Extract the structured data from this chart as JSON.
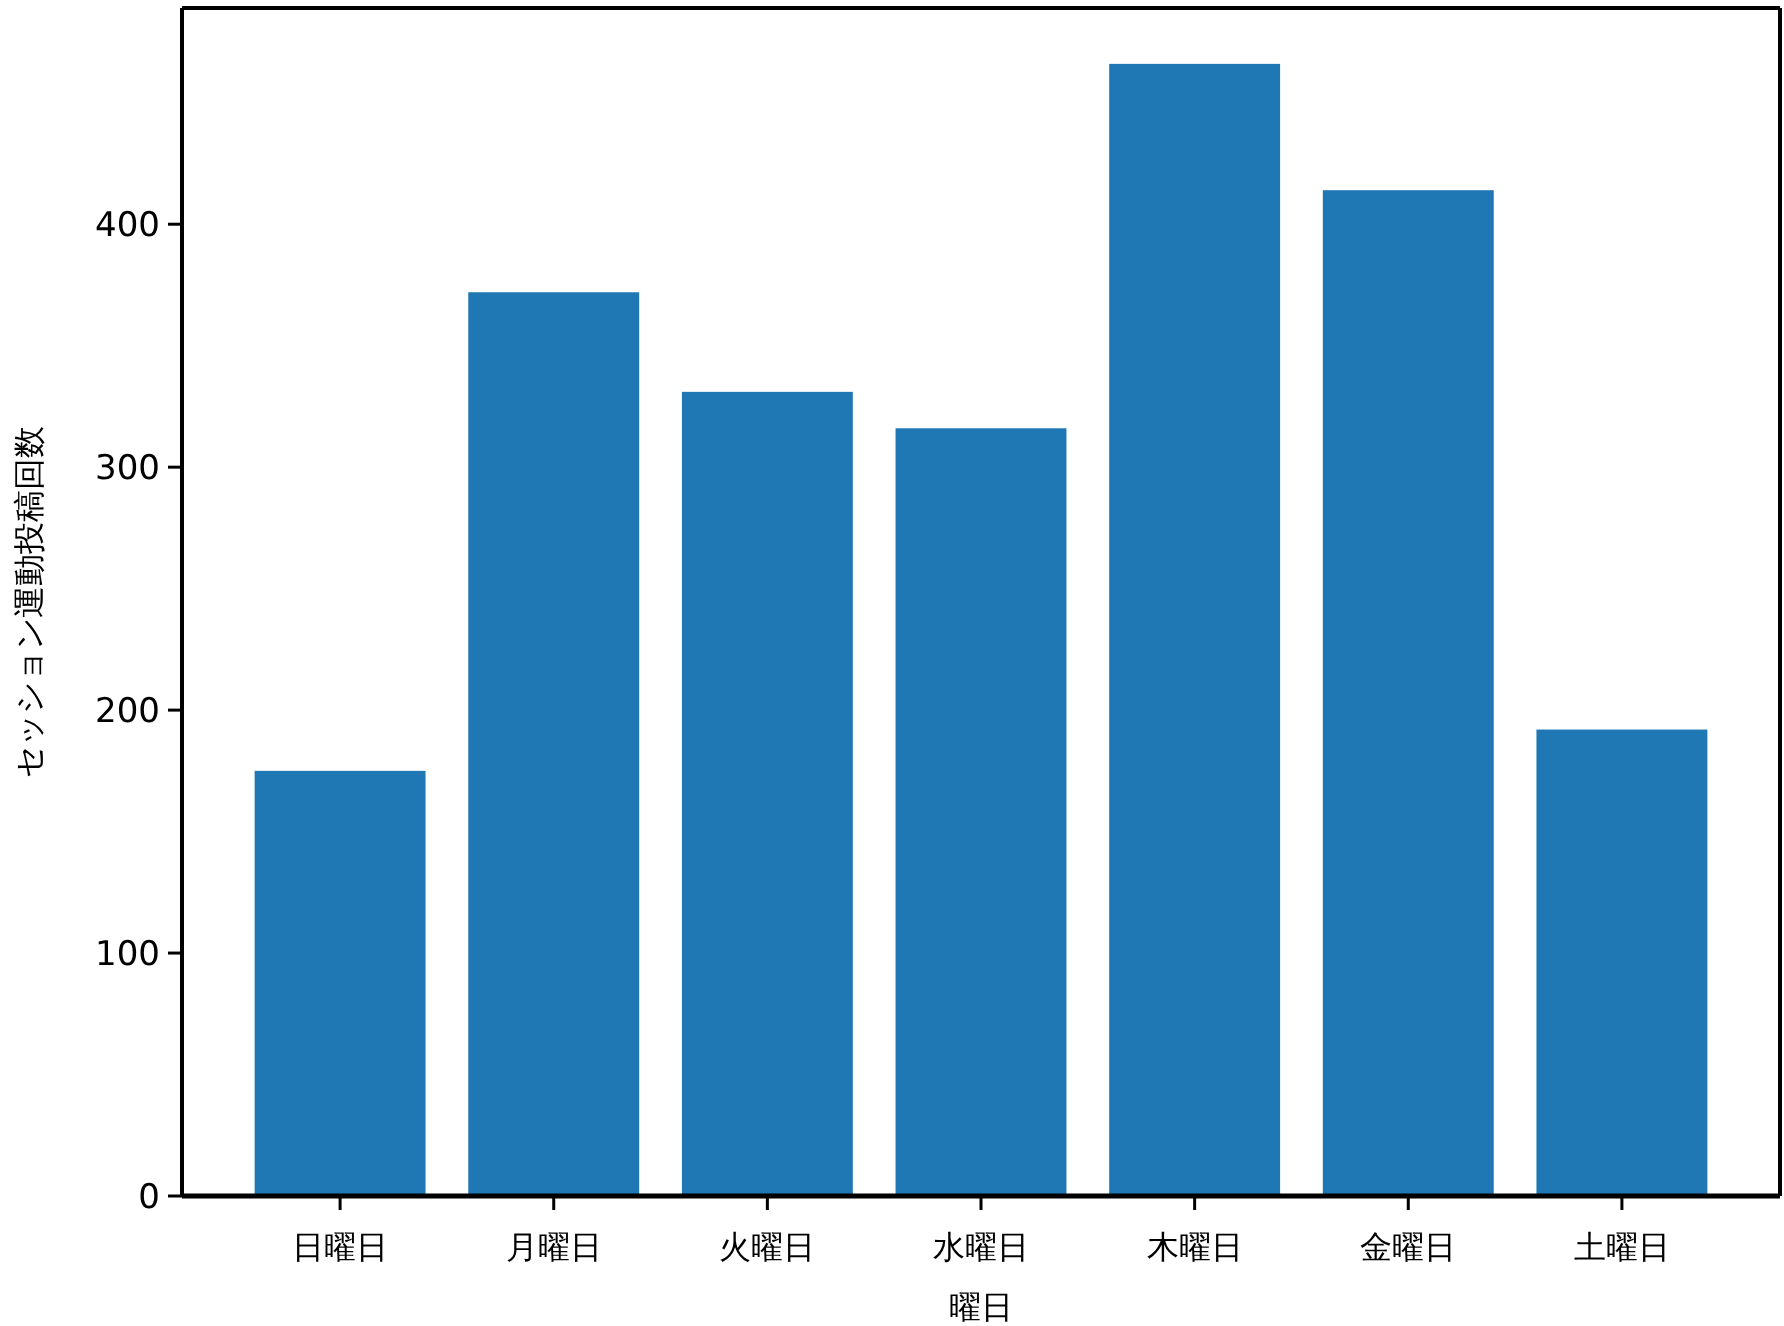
{
  "chart_data": {
    "type": "bar",
    "xlabel": "曜日",
    "ylabel": "セッション運動投稿回数",
    "categories": [
      "日曜日",
      "月曜日",
      "火曜日",
      "水曜日",
      "木曜日",
      "金曜日",
      "土曜日"
    ],
    "values": [
      175,
      372,
      331,
      316,
      466,
      414,
      192
    ],
    "color": "#1f77b4",
    "ylim": [
      0,
      489
    ],
    "yticks": [
      0,
      100,
      200,
      300,
      400
    ]
  }
}
